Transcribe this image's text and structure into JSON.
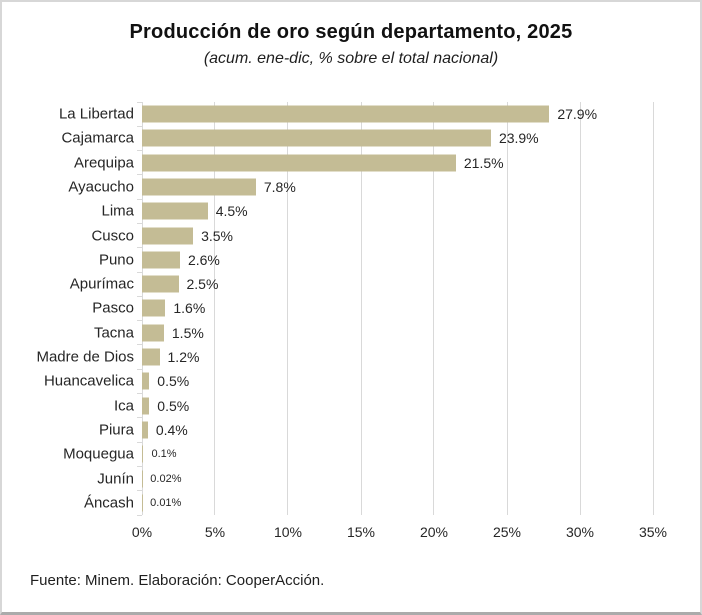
{
  "title": "Producción de oro según departamento, 2025",
  "subtitle": "(acum. ene-dic, % sobre el total nacional)",
  "footer": {
    "source": "Fuente: Minem. Elaboración: CooperAcción."
  },
  "chart_data": {
    "type": "bar",
    "orientation": "horizontal",
    "title": "Producción de oro según departamento, 2025",
    "subtitle": "(acum. ene-dic, % sobre el total nacional)",
    "categories": [
      "La Libertad",
      "Cajamarca",
      "Arequipa",
      "Ayacucho",
      "Lima",
      "Cusco",
      "Puno",
      "Apurímac",
      "Pasco",
      "Tacna",
      "Madre de Dios",
      "Huancavelica",
      "Ica",
      "Piura",
      "Moquegua",
      "Junín",
      "Áncash"
    ],
    "values": [
      27.9,
      23.9,
      21.5,
      7.8,
      4.5,
      3.5,
      2.6,
      2.5,
      1.6,
      1.5,
      1.2,
      0.5,
      0.5,
      0.4,
      0.1,
      0.02,
      0.01
    ],
    "value_labels": [
      "27.9%",
      "23.9%",
      "21.5%",
      "7.8%",
      "4.5%",
      "3.5%",
      "2.6%",
      "2.5%",
      "1.6%",
      "1.5%",
      "1.2%",
      "0.5%",
      "0.5%",
      "0.4%",
      "0.1%",
      "0.02%",
      "0.01%"
    ],
    "xlabel": "",
    "ylabel": "",
    "xlim": [
      0,
      35
    ],
    "x_tick_step": 5,
    "x_tick_labels": [
      "0%",
      "5%",
      "10%",
      "15%",
      "20%",
      "25%",
      "30%",
      "35%"
    ],
    "grid": true,
    "legend": false,
    "bar_color": "#C4BC95",
    "gridline_color": "#D9D9D9",
    "axis_color": "#D9D9D9",
    "text_color": "#262626"
  }
}
